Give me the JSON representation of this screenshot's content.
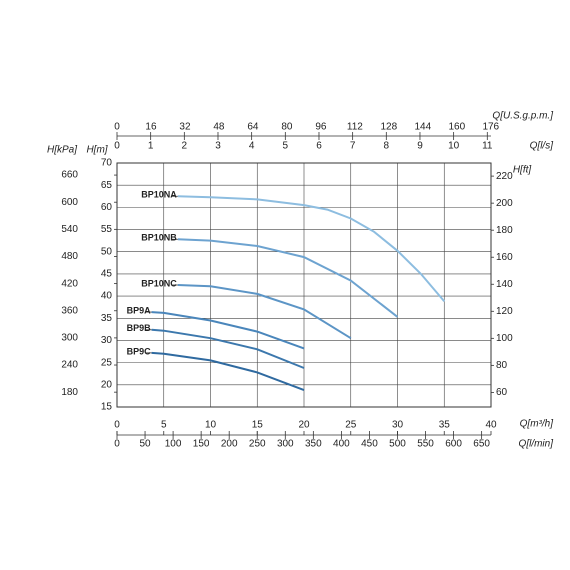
{
  "chart_data": {
    "type": "line",
    "xlabel": "Q[m³/h]",
    "xlim": [
      0,
      40
    ],
    "xticks": [
      0,
      5,
      10,
      15,
      20,
      25,
      30,
      35,
      40
    ],
    "ylabel": "H[m]",
    "ylim": [
      15,
      70
    ],
    "yticks": [
      15,
      20,
      25,
      30,
      35,
      40,
      45,
      50,
      55,
      60,
      65,
      70
    ],
    "grid": true,
    "secondary_axes": [
      {
        "position": "top",
        "label": "Q[U.S.g.p.m.]",
        "lim": [
          0,
          176.1
        ],
        "ticks": [
          0,
          16,
          32,
          48,
          64,
          80,
          96,
          112,
          128,
          144,
          160,
          176
        ]
      },
      {
        "position": "top",
        "label": "Q[l/s]",
        "lim": [
          0,
          11.11
        ],
        "ticks": [
          0,
          1,
          2,
          3,
          4,
          5,
          6,
          7,
          8,
          9,
          10,
          11
        ]
      },
      {
        "position": "bottom",
        "label": "Q[l/min]",
        "lim": [
          0,
          666.7
        ],
        "ticks": [
          0,
          50,
          100,
          150,
          200,
          250,
          300,
          350,
          400,
          450,
          500,
          550,
          600,
          650
        ]
      },
      {
        "position": "left",
        "label": "H[kPa]",
        "lim": [
          147.2,
          686.7
        ],
        "ticks": [
          180,
          240,
          300,
          360,
          420,
          480,
          540,
          600,
          660
        ]
      },
      {
        "position": "right",
        "label": "H[ft]",
        "lim": [
          49.2,
          229.7
        ],
        "ticks": [
          60,
          80,
          100,
          120,
          140,
          160,
          180,
          200,
          220
        ]
      }
    ],
    "series": [
      {
        "name": "BP10NA",
        "color": "#8dbde0",
        "x": [
          6.5,
          10,
          15,
          20,
          22.5,
          25,
          27.5,
          30,
          32.5,
          35
        ],
        "values": [
          62.5,
          62.3,
          61.8,
          60.5,
          59.5,
          57.5,
          54.5,
          50.2,
          45,
          38.8
        ]
      },
      {
        "name": "BP10NB",
        "color": "#6da3d0",
        "x": [
          6.5,
          10,
          15,
          20,
          25,
          30
        ],
        "values": [
          52.8,
          52.5,
          51.3,
          48.8,
          43.5,
          35.3
        ]
      },
      {
        "name": "BP10NC",
        "color": "#5c95c6",
        "x": [
          6.5,
          10,
          15,
          20,
          25
        ],
        "values": [
          42.5,
          42.2,
          40.5,
          37,
          30.5
        ]
      },
      {
        "name": "BP9A",
        "color": "#4a86bb",
        "x": [
          3.7,
          5,
          10,
          15,
          20
        ],
        "values": [
          36.4,
          36.2,
          34.5,
          32,
          28.2
        ]
      },
      {
        "name": "BP9B",
        "color": "#3c78ad",
        "x": [
          3.7,
          5,
          10,
          15,
          20
        ],
        "values": [
          32.4,
          32.2,
          30.5,
          28,
          23.8
        ]
      },
      {
        "name": "BP9C",
        "color": "#2f6aa0",
        "x": [
          3.7,
          5,
          10,
          15,
          20
        ],
        "values": [
          27.2,
          27,
          25.5,
          22.8,
          18.8
        ]
      }
    ]
  }
}
